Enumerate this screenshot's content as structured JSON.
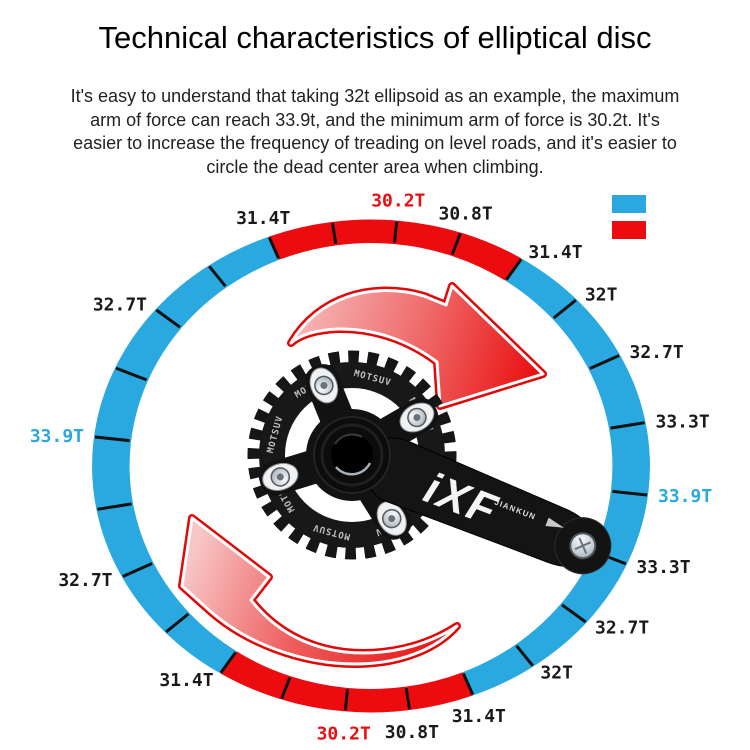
{
  "title": "Technical characteristics of elliptical disc",
  "description_lines": [
    "It's easy to understand that taking 32t ellipsoid as an example, the maximum",
    "arm of force can reach 33.9t, and the minimum arm of force is 30.2t. It's",
    "easier to increase the frequency of treading on level roads, and it's easier to",
    "circle the dead center area when climbing."
  ],
  "colors": {
    "blue": "#29A9DF",
    "red": "#EC0C10",
    "black": "#1a1a1a",
    "tick": "#111111"
  },
  "legend": {
    "swatches": [
      {
        "name": "blue",
        "color": "#29A9DF"
      },
      {
        "name": "red",
        "color": "#EC0C10"
      }
    ]
  },
  "crank": {
    "brand": "iXF",
    "arm_text": "JIANKUN",
    "ring_text": "MOTSUV"
  },
  "chart_data": {
    "type": "radial-segments",
    "unit": "T",
    "min_value": 30.2,
    "max_value": 33.9,
    "center": [
      371,
      466
    ],
    "outer_radii": [
      279,
      246.5
    ],
    "inner_radii": [
      241.5,
      223
    ],
    "tick_start_deg": -6,
    "tick_step_deg": 15,
    "tick_count": 24,
    "segments": [
      {
        "from": 114,
        "to": 54,
        "color": "red"
      },
      {
        "from": 54,
        "to": -66,
        "color": "blue"
      },
      {
        "from": -66,
        "to": -126,
        "color": "red"
      },
      {
        "from": -126,
        "to": -246,
        "color": "blue"
      }
    ],
    "labels": [
      {
        "deg": 84,
        "text": "30.2T",
        "color": "red"
      },
      {
        "deg": 69,
        "text": "30.8T",
        "color": "black"
      },
      {
        "deg": 54,
        "text": "31.4T",
        "color": "black"
      },
      {
        "deg": 39,
        "text": "32T",
        "color": "black"
      },
      {
        "deg": 24,
        "text": "32.7T",
        "color": "black"
      },
      {
        "deg": 9,
        "text": "33.3T",
        "color": "black"
      },
      {
        "deg": -6,
        "text": "33.9T",
        "color": "blue"
      },
      {
        "deg": -21,
        "text": "33.3T",
        "color": "black"
      },
      {
        "deg": -36,
        "text": "32.7T",
        "color": "black"
      },
      {
        "deg": -51,
        "text": "32T",
        "color": "black"
      },
      {
        "deg": -66,
        "text": "31.4T",
        "color": "black"
      },
      {
        "deg": -81,
        "text": "30.8T",
        "color": "black"
      },
      {
        "deg": -96,
        "text": "30.2T",
        "color": "red"
      },
      {
        "deg": -126,
        "text": "31.4T",
        "color": "black"
      },
      {
        "deg": -156,
        "text": "32.7T",
        "color": "black"
      },
      {
        "deg": 174,
        "text": "33.9T",
        "color": "blue"
      },
      {
        "deg": 144,
        "text": "32.7T",
        "color": "black"
      },
      {
        "deg": 114,
        "text": "31.4T",
        "color": "black"
      }
    ]
  }
}
